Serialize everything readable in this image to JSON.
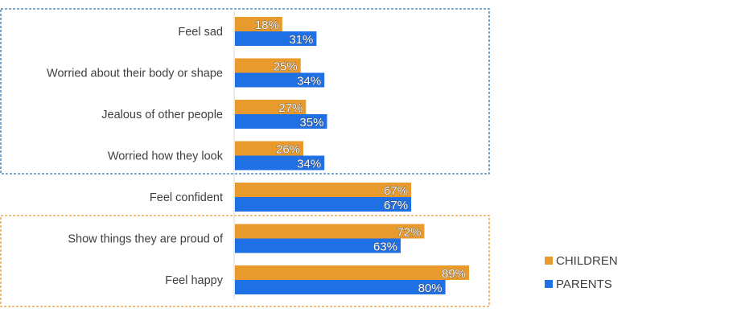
{
  "chart_data": {
    "type": "bar",
    "orientation": "horizontal",
    "categories": [
      "Feel sad",
      "Worried about their body or shape",
      "Jealous of other people",
      "Worried how they look",
      "Feel confident",
      "Show things they are proud of",
      "Feel happy"
    ],
    "series": [
      {
        "name": "CHILDREN",
        "values": [
          18,
          25,
          27,
          26,
          67,
          72,
          89
        ],
        "labels": [
          "18%",
          "25%",
          "27%",
          "26%",
          "67%",
          "72%",
          "89%"
        ],
        "color": "#E89A2C"
      },
      {
        "name": "PARENTS",
        "values": [
          31,
          34,
          35,
          34,
          67,
          63,
          80
        ],
        "labels": [
          "31%",
          "34%",
          "35%",
          "34%",
          "67%",
          "63%",
          "80%"
        ],
        "color": "#1F6FE5"
      }
    ],
    "xlim": [
      0,
      100
    ],
    "grid": false,
    "legend": "right",
    "highlight_groups": [
      {
        "categories": [
          0,
          1,
          2,
          3
        ],
        "color": "#2E75B6"
      },
      {
        "categories": [
          5,
          6
        ],
        "color": "#E89A2C"
      }
    ]
  }
}
